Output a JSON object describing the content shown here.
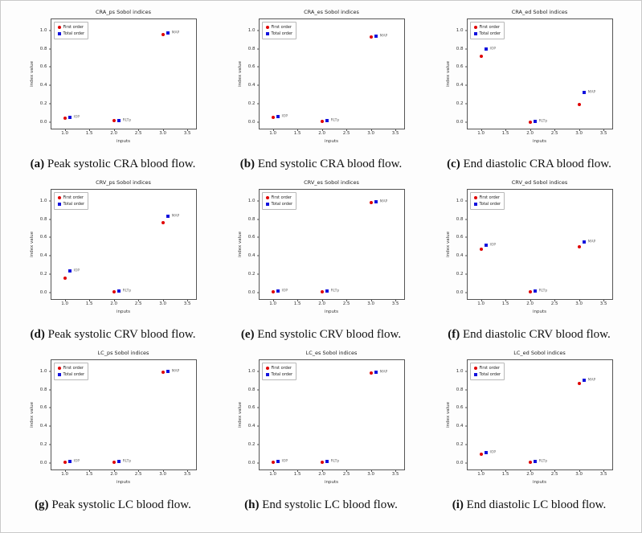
{
  "figure": {
    "background": "#ffffff"
  },
  "axes": {
    "xlabel": "inputs",
    "ylabel": "index value",
    "xticks": [
      1.0,
      1.5,
      2.0,
      2.5,
      3.0,
      3.5
    ],
    "yticks": [
      0.0,
      0.2,
      0.4,
      0.6,
      0.8,
      1.0
    ],
    "xlim": [
      0.72,
      3.67
    ],
    "ylim": [
      -0.07,
      1.12
    ],
    "grid": false
  },
  "legend": {
    "position": "upper-left",
    "first_order": "First order",
    "total_order": "Total order"
  },
  "colors": {
    "first_order": "#e00000",
    "total_order": "#1212dd",
    "point_label": "#666666",
    "axis": "#444444"
  },
  "marker_layout": {
    "total_dx": 0.1,
    "label_dx": 0.18
  },
  "chart_data": [
    {
      "type": "scatter",
      "title": "CRA_ps Sobol indices",
      "caption_label": "(a)",
      "caption_text": "Peak systolic CRA blood flow.",
      "points": [
        {
          "input": "IOP",
          "x": 1,
          "first_order": 0.04,
          "total_order": 0.05
        },
        {
          "input": "RLTp",
          "x": 2,
          "first_order": 0.02,
          "total_order": 0.02
        },
        {
          "input": "MAP",
          "x": 3,
          "first_order": 0.95,
          "total_order": 0.97
        }
      ]
    },
    {
      "type": "scatter",
      "title": "CRA_es Sobol indices",
      "caption_label": "(b)",
      "caption_text": "End systolic CRA blood flow.",
      "points": [
        {
          "input": "IOP",
          "x": 1,
          "first_order": 0.05,
          "total_order": 0.06
        },
        {
          "input": "RLTp",
          "x": 2,
          "first_order": 0.01,
          "total_order": 0.02
        },
        {
          "input": "MAP",
          "x": 3,
          "first_order": 0.93,
          "total_order": 0.94
        }
      ]
    },
    {
      "type": "scatter",
      "title": "CRA_ed Sobol indices",
      "caption_label": "(c)",
      "caption_text": "End diastolic CRA blood flow.",
      "points": [
        {
          "input": "IOP",
          "x": 1,
          "first_order": 0.72,
          "total_order": 0.8
        },
        {
          "input": "RLTp",
          "x": 2,
          "first_order": 0.0,
          "total_order": 0.01
        },
        {
          "input": "MAP",
          "x": 3,
          "first_order": 0.19,
          "total_order": 0.32
        }
      ]
    },
    {
      "type": "scatter",
      "title": "CRV_ps Sobol indices",
      "caption_label": "(d)",
      "caption_text": "Peak systolic CRV blood flow.",
      "points": [
        {
          "input": "IOP",
          "x": 1,
          "first_order": 0.16,
          "total_order": 0.24
        },
        {
          "input": "RLTp",
          "x": 2,
          "first_order": 0.01,
          "total_order": 0.02
        },
        {
          "input": "MAP",
          "x": 3,
          "first_order": 0.76,
          "total_order": 0.83
        }
      ]
    },
    {
      "type": "scatter",
      "title": "CRV_es Sobol indices",
      "caption_label": "(e)",
      "caption_text": "End systolic CRV blood flow.",
      "points": [
        {
          "input": "IOP",
          "x": 1,
          "first_order": 0.01,
          "total_order": 0.02
        },
        {
          "input": "RLTp",
          "x": 2,
          "first_order": 0.01,
          "total_order": 0.02
        },
        {
          "input": "MAP",
          "x": 3,
          "first_order": 0.98,
          "total_order": 0.99
        }
      ]
    },
    {
      "type": "scatter",
      "title": "CRV_ed Sobol indices",
      "caption_label": "(f)",
      "caption_text": "End diastolic CRV blood flow.",
      "points": [
        {
          "input": "IOP",
          "x": 1,
          "first_order": 0.47,
          "total_order": 0.52
        },
        {
          "input": "RLTp",
          "x": 2,
          "first_order": 0.01,
          "total_order": 0.02
        },
        {
          "input": "MAP",
          "x": 3,
          "first_order": 0.5,
          "total_order": 0.55
        }
      ]
    },
    {
      "type": "scatter",
      "title": "LC_ps Sobol indices",
      "caption_label": "(g)",
      "caption_text": "Peak systolic LC blood flow.",
      "points": [
        {
          "input": "IOP",
          "x": 1,
          "first_order": 0.01,
          "total_order": 0.02
        },
        {
          "input": "RLTp",
          "x": 2,
          "first_order": 0.01,
          "total_order": 0.02
        },
        {
          "input": "MAP",
          "x": 3,
          "first_order": 0.99,
          "total_order": 1.0
        }
      ]
    },
    {
      "type": "scatter",
      "title": "LC_es Sobol indices",
      "caption_label": "(h)",
      "caption_text": "End systolic LC blood flow.",
      "points": [
        {
          "input": "IOP",
          "x": 1,
          "first_order": 0.01,
          "total_order": 0.02
        },
        {
          "input": "RLTp",
          "x": 2,
          "first_order": 0.01,
          "total_order": 0.02
        },
        {
          "input": "MAP",
          "x": 3,
          "first_order": 0.98,
          "total_order": 0.99
        }
      ]
    },
    {
      "type": "scatter",
      "title": "LC_ed Sobol indices",
      "caption_label": "(i)",
      "caption_text": "End diastolic LC blood flow.",
      "points": [
        {
          "input": "IOP",
          "x": 1,
          "first_order": 0.1,
          "total_order": 0.11
        },
        {
          "input": "RLTp",
          "x": 2,
          "first_order": 0.01,
          "total_order": 0.02
        },
        {
          "input": "MAP",
          "x": 3,
          "first_order": 0.87,
          "total_order": 0.9
        }
      ]
    }
  ]
}
